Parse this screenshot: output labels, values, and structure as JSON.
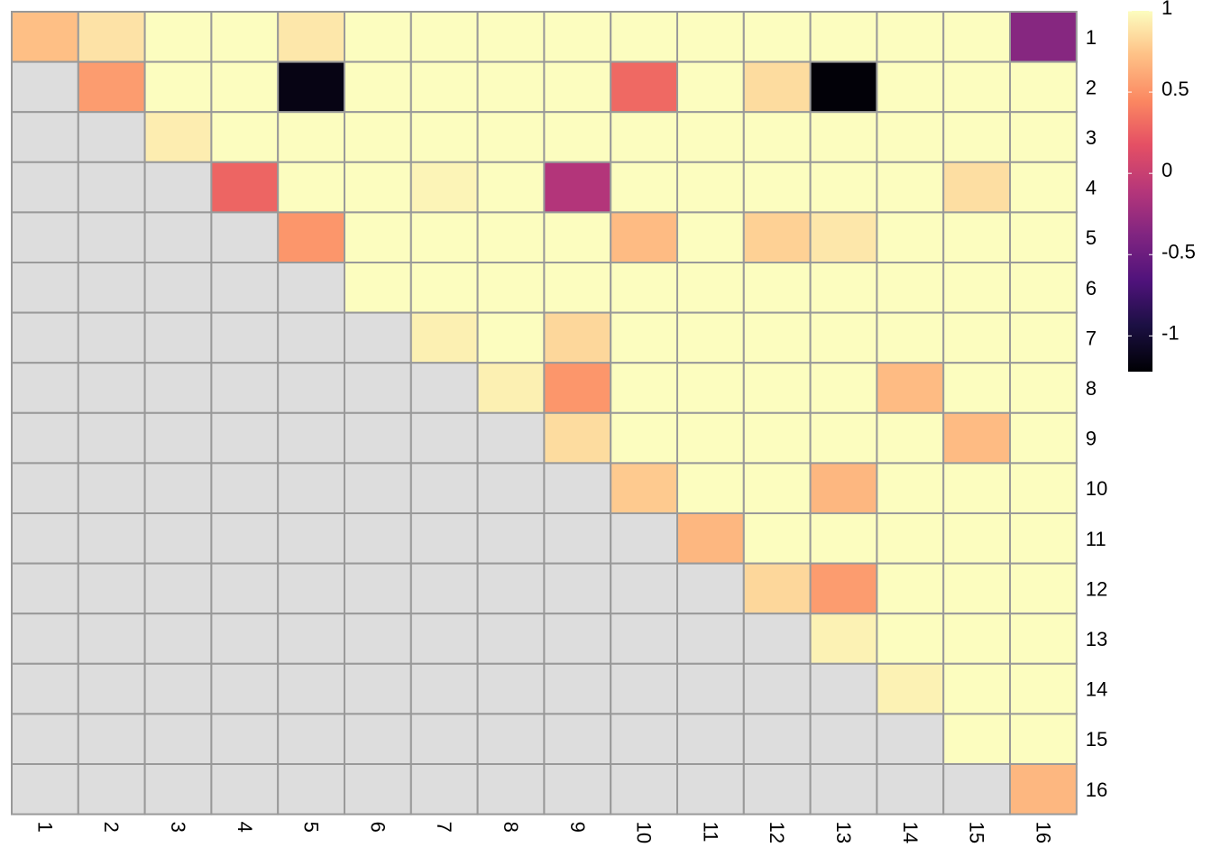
{
  "chart_data": {
    "type": "heatmap",
    "title": "",
    "xlabel": "",
    "ylabel": "",
    "x_categories": [
      "1",
      "2",
      "3",
      "4",
      "5",
      "6",
      "7",
      "8",
      "9",
      "10",
      "11",
      "12",
      "13",
      "14",
      "15",
      "16"
    ],
    "y_categories": [
      "1",
      "2",
      "3",
      "4",
      "5",
      "6",
      "7",
      "8",
      "9",
      "10",
      "11",
      "12",
      "13",
      "14",
      "15",
      "16"
    ],
    "missing_color": "#dddddd",
    "grid_color": "#999999",
    "values": [
      [
        0.72,
        0.88,
        1.0,
        1.0,
        0.9,
        1.0,
        1.0,
        1.0,
        1.0,
        1.0,
        1.0,
        1.0,
        1.0,
        1.0,
        1.0,
        -0.35
      ],
      [
        null,
        0.55,
        1.0,
        1.0,
        -1.15,
        1.0,
        1.0,
        1.0,
        1.0,
        0.3,
        1.0,
        0.85,
        -1.2,
        1.0,
        1.0,
        1.0
      ],
      [
        null,
        null,
        0.93,
        1.0,
        1.0,
        1.0,
        1.0,
        1.0,
        1.0,
        1.0,
        1.0,
        1.0,
        1.0,
        1.0,
        1.0,
        1.0
      ],
      [
        null,
        null,
        null,
        0.28,
        1.0,
        1.0,
        0.96,
        1.0,
        -0.12,
        1.0,
        1.0,
        1.0,
        1.0,
        1.0,
        0.86,
        1.0
      ],
      [
        null,
        null,
        null,
        null,
        0.52,
        1.0,
        1.0,
        1.0,
        1.0,
        0.7,
        1.0,
        0.8,
        0.9,
        1.0,
        1.0,
        1.0
      ],
      [
        null,
        null,
        null,
        null,
        null,
        1.0,
        1.0,
        1.0,
        1.0,
        1.0,
        1.0,
        1.0,
        1.0,
        1.0,
        1.0,
        1.0
      ],
      [
        null,
        null,
        null,
        null,
        null,
        null,
        0.94,
        1.0,
        0.83,
        1.0,
        1.0,
        1.0,
        1.0,
        1.0,
        1.0,
        1.0
      ],
      [
        null,
        null,
        null,
        null,
        null,
        null,
        null,
        0.94,
        0.52,
        1.0,
        1.0,
        1.0,
        1.0,
        0.7,
        1.0,
        1.0
      ],
      [
        null,
        null,
        null,
        null,
        null,
        null,
        null,
        null,
        0.85,
        1.0,
        1.0,
        1.0,
        1.0,
        1.0,
        0.7,
        1.0
      ],
      [
        null,
        null,
        null,
        null,
        null,
        null,
        null,
        null,
        null,
        0.77,
        1.0,
        1.0,
        0.68,
        1.0,
        1.0,
        1.0
      ],
      [
        null,
        null,
        null,
        null,
        null,
        null,
        null,
        null,
        null,
        null,
        0.68,
        1.0,
        1.0,
        1.0,
        1.0,
        1.0
      ],
      [
        null,
        null,
        null,
        null,
        null,
        null,
        null,
        null,
        null,
        null,
        null,
        0.83,
        0.55,
        1.0,
        1.0,
        1.0
      ],
      [
        null,
        null,
        null,
        null,
        null,
        null,
        null,
        null,
        null,
        null,
        null,
        null,
        0.95,
        1.0,
        1.0,
        1.0
      ],
      [
        null,
        null,
        null,
        null,
        null,
        null,
        null,
        null,
        null,
        null,
        null,
        null,
        null,
        0.95,
        1.0,
        1.0
      ],
      [
        null,
        null,
        null,
        null,
        null,
        null,
        null,
        null,
        null,
        null,
        null,
        null,
        null,
        null,
        1.0,
        1.0
      ],
      [
        null,
        null,
        null,
        null,
        null,
        null,
        null,
        null,
        null,
        null,
        null,
        null,
        null,
        null,
        null,
        0.68
      ]
    ],
    "colorbar": {
      "range": [
        -1.22,
        1.0
      ],
      "ticks": [
        1,
        0.5,
        0,
        -0.5,
        -1
      ],
      "tick_labels": [
        "1",
        "0.5",
        "0",
        "-0.5",
        "-1"
      ],
      "colormap": "magma"
    }
  }
}
